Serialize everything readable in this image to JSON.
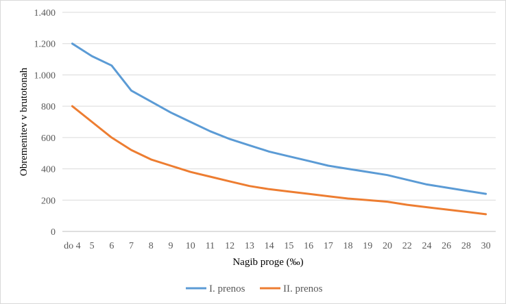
{
  "chart_data": {
    "type": "line",
    "title": "",
    "xlabel": "Nagib proge (‰)",
    "ylabel": "Obremenitev v brutotonah",
    "categories": [
      "do 4",
      "5",
      "6",
      "7",
      "8",
      "9",
      "10",
      "11",
      "12",
      "13",
      "14",
      "15",
      "16",
      "17",
      "18",
      "19",
      "20",
      "22",
      "24",
      "26",
      "28",
      "30"
    ],
    "ylim": [
      0,
      1400
    ],
    "yticks": [
      0,
      200,
      400,
      600,
      800,
      1000,
      1200,
      1400
    ],
    "ytick_labels": [
      "0",
      "200",
      "400",
      "600",
      "800",
      "1.000",
      "1.200",
      "1.400"
    ],
    "grid": true,
    "legend_position": "bottom",
    "series": [
      {
        "name": "I. prenos",
        "color": "#5b9bd5",
        "values": [
          1200,
          1120,
          1060,
          900,
          830,
          760,
          700,
          640,
          590,
          550,
          510,
          480,
          450,
          420,
          400,
          380,
          360,
          330,
          300,
          280,
          260,
          240
        ]
      },
      {
        "name": "II. prenos",
        "color": "#ed7d31",
        "values": [
          800,
          700,
          600,
          520,
          460,
          420,
          380,
          350,
          320,
          290,
          270,
          255,
          240,
          225,
          210,
          200,
          190,
          170,
          155,
          140,
          125,
          110
        ]
      }
    ]
  }
}
